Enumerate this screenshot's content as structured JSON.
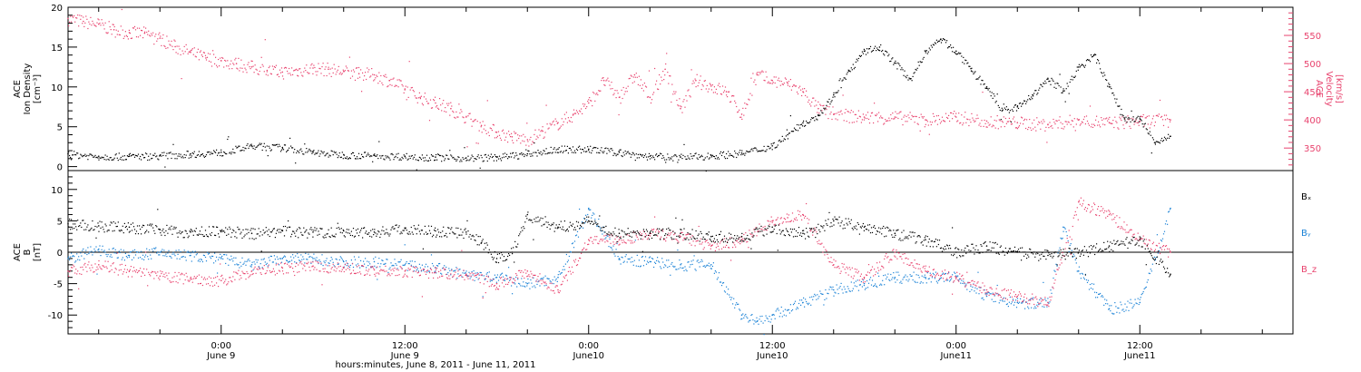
{
  "colors": {
    "black": "#000000",
    "red": "#e8436e",
    "blue": "#1a82d6"
  },
  "xaxis": {
    "label": "hours:minutes, June  8, 2011 - June 11, 2011",
    "ticks": [
      {
        "hours": 24,
        "time": "0:00",
        "day": "June 9"
      },
      {
        "hours": 36,
        "time": "12:00",
        "day": "June 9"
      },
      {
        "hours": 48,
        "time": "0:00",
        "day": "June10"
      },
      {
        "hours": 60,
        "time": "12:00",
        "day": "June10"
      },
      {
        "hours": 72,
        "time": "0:00",
        "day": "June11"
      },
      {
        "hours": 84,
        "time": "12:00",
        "day": "June11"
      }
    ],
    "range_hours": [
      14,
      94
    ]
  },
  "chart_data": [
    {
      "type": "scatter",
      "ylabel": [
        "ACE",
        "Ion Density",
        "[cm⁻³]"
      ],
      "y_ticks": [
        "0",
        "5",
        "10",
        "15",
        "20"
      ],
      "ylim": [
        -0.5,
        20
      ],
      "y2label": [
        "ACE",
        "Velocity",
        "[km/s]"
      ],
      "y2_ticks": [
        "350",
        "400",
        "450",
        "500",
        "550"
      ],
      "y2lim": [
        310,
        600
      ],
      "series": [
        {
          "axis": "left",
          "color": "black",
          "x": [
            14,
            16,
            18,
            20,
            22,
            24,
            26,
            28,
            30,
            32,
            34,
            36,
            38,
            40,
            42,
            44,
            46,
            48,
            50,
            52,
            54,
            56,
            58,
            60,
            61,
            62,
            63,
            64,
            65,
            66,
            67,
            68,
            69,
            70,
            71,
            72,
            73,
            74,
            75,
            76,
            77,
            78,
            79,
            80,
            81,
            82,
            83,
            84,
            85,
            86
          ],
          "y": [
            1.6,
            1.3,
            1.3,
            1.4,
            1.6,
            1.8,
            2.6,
            2.4,
            1.8,
            1.5,
            1.4,
            1.3,
            1.2,
            1.1,
            1.2,
            1.6,
            2.2,
            2.2,
            1.8,
            1.3,
            1.2,
            1.4,
            1.7,
            2.6,
            4.0,
            5.5,
            6.5,
            9.0,
            12,
            14.5,
            15,
            13,
            11,
            14.5,
            16,
            14.5,
            12,
            10,
            7,
            7.5,
            9,
            11,
            9.5,
            12.5,
            14,
            10,
            6,
            6,
            3,
            3.8
          ]
        },
        {
          "axis": "right",
          "color": "red",
          "x": [
            14,
            15,
            16,
            17,
            18,
            19,
            20,
            21,
            22,
            23,
            24,
            25,
            26,
            27,
            28,
            29,
            30,
            31,
            32,
            33,
            34,
            35,
            36,
            37,
            38,
            39,
            40,
            41,
            42,
            43,
            44,
            45,
            46,
            47,
            48,
            49,
            50,
            51,
            52,
            53,
            54,
            55,
            56,
            57,
            58,
            59,
            60,
            61,
            62,
            63,
            64,
            66,
            68,
            70,
            72,
            74,
            76,
            78,
            80,
            82,
            84,
            86
          ],
          "y": [
            580,
            575,
            570,
            560,
            555,
            554,
            545,
            530,
            520,
            510,
            505,
            500,
            494,
            488,
            485,
            488,
            492,
            490,
            486,
            482,
            480,
            470,
            455,
            440,
            430,
            420,
            405,
            390,
            378,
            370,
            365,
            380,
            395,
            410,
            430,
            470,
            440,
            480,
            440,
            490,
            420,
            470,
            460,
            450,
            410,
            480,
            470,
            465,
            450,
            420,
            410,
            405,
            405,
            400,
            405,
            398,
            395,
            392,
            400,
            395,
            398,
            400
          ]
        }
      ]
    },
    {
      "type": "scatter",
      "ylabel": [
        "ACE",
        "B",
        "[nT]"
      ],
      "y_ticks": [
        "-10",
        "-5",
        "0",
        "5",
        "10"
      ],
      "ylim": [
        -13,
        13
      ],
      "zero_line": true,
      "legend": [
        "Bₓ",
        "Bᵧ",
        "B_z"
      ],
      "legend_placement": "right",
      "series": [
        {
          "name": "Bₓ",
          "color": "black",
          "x": [
            14,
            16,
            18,
            20,
            22,
            24,
            26,
            28,
            30,
            32,
            34,
            36,
            38,
            40,
            41,
            42,
            43,
            44,
            46,
            48,
            50,
            52,
            54,
            56,
            58,
            60,
            62,
            64,
            66,
            68,
            70,
            72,
            74,
            76,
            78,
            80,
            82,
            84,
            86
          ],
          "y": [
            4.5,
            4.2,
            4.0,
            3.6,
            3.2,
            3.4,
            3.0,
            3.4,
            3.2,
            3.4,
            3.2,
            3.8,
            3.4,
            3.2,
            1.5,
            -1,
            0,
            6,
            4,
            5,
            3,
            3,
            3,
            2.5,
            2.5,
            4,
            3,
            5,
            4,
            3,
            2,
            0,
            1,
            0,
            -0.5,
            0,
            1,
            2,
            -3.5
          ]
        },
        {
          "name": "Bᵧ",
          "color": "blue",
          "x": [
            14,
            16,
            18,
            20,
            22,
            24,
            26,
            28,
            30,
            32,
            34,
            36,
            38,
            40,
            42,
            44,
            46,
            48,
            50,
            52,
            54,
            56,
            58,
            59,
            60,
            62,
            64,
            66,
            68,
            70,
            72,
            74,
            76,
            78,
            79,
            80,
            82,
            84,
            86
          ],
          "y": [
            -1,
            0.5,
            -0.5,
            0,
            -0.5,
            -1,
            -2,
            -1,
            -1,
            -1.5,
            -1.5,
            -2,
            -2.5,
            -3.5,
            -4,
            -5,
            -4,
            7,
            -1,
            -1.5,
            -2,
            -2,
            -10,
            -11,
            -10,
            -8,
            -6,
            -5,
            -4,
            -4,
            -4,
            -7,
            -8,
            -8,
            4,
            -3,
            -9,
            -8,
            7
          ]
        },
        {
          "name": "B_z",
          "color": "red",
          "x": [
            14,
            16,
            18,
            20,
            22,
            24,
            26,
            28,
            30,
            32,
            34,
            36,
            38,
            40,
            42,
            44,
            46,
            48,
            50,
            52,
            54,
            56,
            58,
            60,
            61,
            62,
            64,
            66,
            68,
            70,
            72,
            74,
            76,
            78,
            80,
            82,
            84,
            86
          ],
          "y": [
            -3,
            -2,
            -3,
            -3.8,
            -4.2,
            -4.5,
            -3,
            -2.5,
            -2.2,
            -2.5,
            -2.8,
            -3.0,
            -3.2,
            -3.5,
            -5,
            -3,
            -6,
            2,
            2,
            3,
            2.5,
            1,
            2,
            5,
            5.5,
            6,
            -2,
            -4,
            0,
            -3,
            -4,
            -6,
            -7,
            -8,
            8,
            6,
            2,
            0
          ]
        }
      ]
    }
  ]
}
